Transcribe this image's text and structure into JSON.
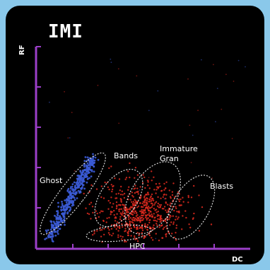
{
  "chart_data": {
    "type": "scatter",
    "title": "IMI",
    "xlabel": "DC",
    "ylabel": "RF",
    "grid": false,
    "colors": {
      "background": "#000000",
      "axis": "#9b3fc8",
      "ghost_points": "#3b5bd6",
      "cell_points": "#e02a1f",
      "gate_outline": "#dddddd"
    },
    "populations": [
      {
        "label": "Ghost"
      },
      {
        "label": "Bands"
      },
      {
        "label": "Immature\nGran"
      },
      {
        "label": "Blasts"
      },
      {
        "label": "HPC"
      }
    ]
  }
}
